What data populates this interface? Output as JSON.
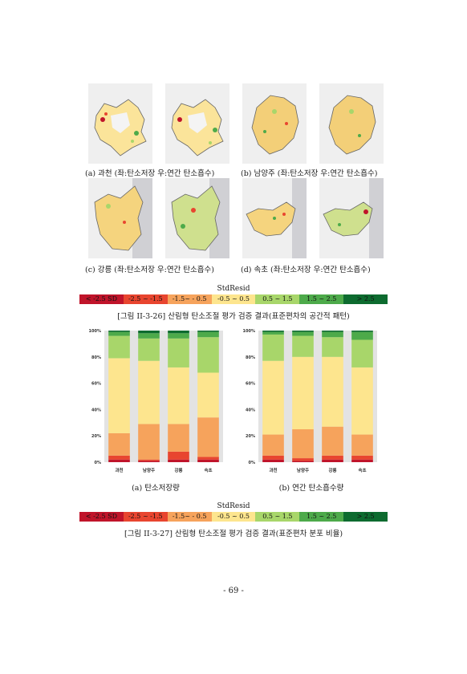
{
  "map_captions": [
    "(a) 과천 (좌:탄소저장 우:연간 탄소흡수)",
    "(b) 남양주 (좌:탄소저장 우:연간 탄소흡수)",
    "(c) 강릉 (좌:탄소저장 우:연간 탄소흡수)",
    "(d) 속초 (좌:탄소저장 우:연간 탄소흡수)"
  ],
  "legend": {
    "title": "StdResid",
    "items": [
      {
        "label": "< -2.5 SD",
        "color": "#c0142a"
      },
      {
        "label": "-2.5 ~ -1.5",
        "color": "#e8452f"
      },
      {
        "label": "-1.5~ - 0.5",
        "color": "#f6a35c"
      },
      {
        "label": "-0.5 ~ 0.5",
        "color": "#fde58e"
      },
      {
        "label": "0.5 ~ 1.5",
        "color": "#a8d66a"
      },
      {
        "label": "1.5 ~ 2.5",
        "color": "#4daa4a"
      },
      {
        "label": "> 2.5",
        "color": "#0d6b2f"
      }
    ]
  },
  "figure_26_caption": "[그림 II-3-26] 산림형 탄소조절 평가 검증 결과(표준편차의 공간적 패턴)",
  "figure_27_caption": "[그림 II-3-27] 산림형 탄소조절 평가 검증 결과(표준편차 분포 비율)",
  "chart_data": [
    {
      "type": "bar",
      "stacked": true,
      "caption": "(a) 탄소저장량",
      "categories": [
        "과천",
        "남양주",
        "강릉",
        "속초"
      ],
      "y_ticks": [
        "0%",
        "20%",
        "40%",
        "60%",
        "80%",
        "100%"
      ],
      "ylim": [
        0,
        100
      ],
      "series": [
        {
          "values": [
            2,
            1,
            2,
            2
          ]
        },
        {
          "values": [
            3,
            1,
            6,
            2
          ]
        },
        {
          "values": [
            17,
            27,
            21,
            30
          ]
        },
        {
          "values": [
            57,
            48,
            43,
            34
          ]
        },
        {
          "values": [
            17,
            17,
            22,
            27
          ]
        },
        {
          "values": [
            3,
            4,
            4,
            4
          ]
        },
        {
          "values": [
            1,
            2,
            2,
            1
          ]
        }
      ]
    },
    {
      "type": "bar",
      "stacked": true,
      "caption": "(b) 연간 탄소흡수량",
      "categories": [
        "과천",
        "남양주",
        "강릉",
        "속초"
      ],
      "y_ticks": [
        "0%",
        "20%",
        "40%",
        "60%",
        "80%",
        "100%"
      ],
      "ylim": [
        0,
        100
      ],
      "series": [
        {
          "values": [
            2,
            1,
            2,
            2
          ]
        },
        {
          "values": [
            3,
            2,
            3,
            3
          ]
        },
        {
          "values": [
            16,
            22,
            22,
            16
          ]
        },
        {
          "values": [
            56,
            55,
            53,
            51
          ]
        },
        {
          "values": [
            20,
            16,
            15,
            21
          ]
        },
        {
          "values": [
            2,
            3,
            4,
            6
          ]
        },
        {
          "values": [
            1,
            1,
            1,
            1
          ]
        }
      ]
    }
  ],
  "page_number": "- 69 -"
}
